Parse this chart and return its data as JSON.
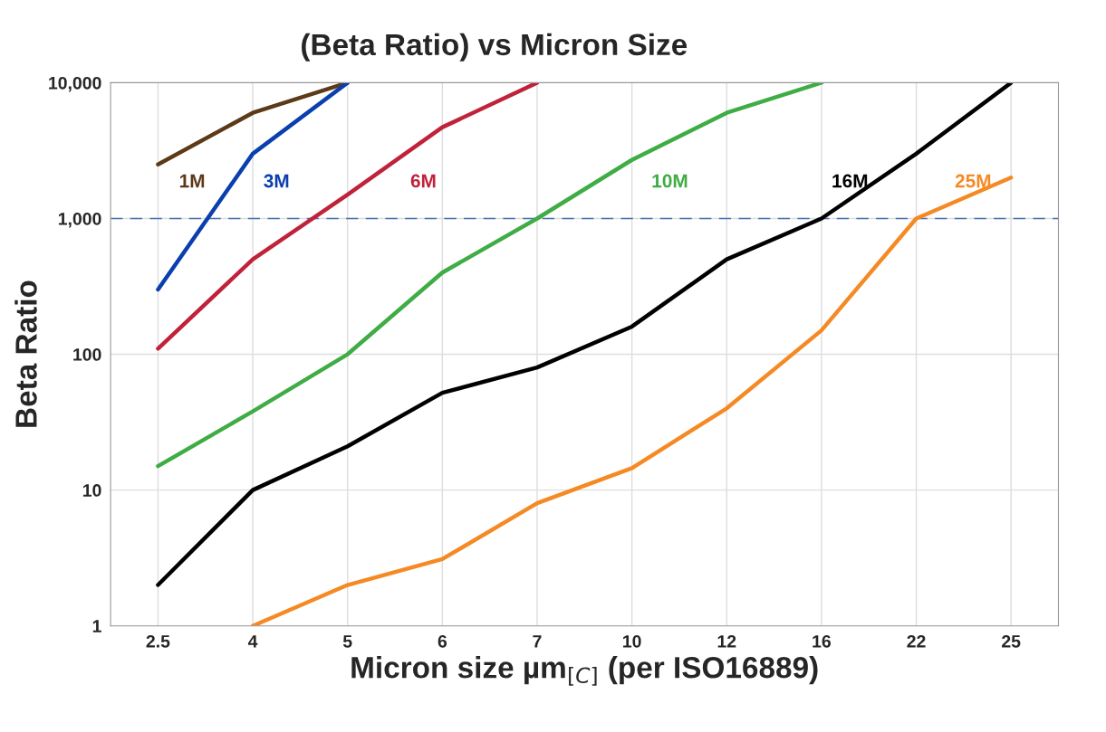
{
  "chart_data": {
    "type": "line",
    "title": "(Beta Ratio) vs Micron Size",
    "xlabel": "Micron size µm$_{[C]}$ (per ISO16889)",
    "ylabel": "Beta Ratio",
    "categories": [
      "2.5",
      "4",
      "5",
      "6",
      "7",
      "10",
      "12",
      "16",
      "22",
      "25"
    ],
    "series": [
      {
        "name": "1M",
        "color": "#5c3a17",
        "values": [
          2500,
          6000,
          10000,
          null,
          null,
          null,
          null,
          null,
          null,
          null
        ]
      },
      {
        "name": "3M",
        "color": "#0a3fae",
        "values": [
          300,
          3000,
          10000,
          null,
          null,
          null,
          null,
          null,
          null,
          null
        ]
      },
      {
        "name": "6M",
        "color": "#c0223a",
        "values": [
          110,
          500,
          1500,
          4700,
          10000,
          null,
          null,
          null,
          null,
          null
        ]
      },
      {
        "name": "10M",
        "color": "#3fac45",
        "values": [
          15,
          38,
          100,
          400,
          1000,
          2700,
          6000,
          10000,
          null,
          null
        ]
      },
      {
        "name": "16M",
        "color": "#000000",
        "values": [
          2,
          10,
          21,
          52,
          80,
          160,
          500,
          1000,
          3000,
          10000
        ]
      },
      {
        "name": "25M",
        "color": "#f58a25",
        "values": [
          null,
          1,
          2,
          3.1,
          8,
          14.5,
          40,
          150,
          1000,
          2000
        ]
      }
    ],
    "log": "y",
    "ylim": [
      1,
      10000
    ],
    "yticks": [
      1,
      10,
      100,
      {
        "value": 1000,
        "label": "1,000"
      },
      {
        "value": 10000,
        "label": "10,000"
      }
    ],
    "ref_lines": [
      {
        "axis": "y",
        "value": 1000,
        "color": "#4a6fb5",
        "line_style": "dashed"
      }
    ],
    "grid": true,
    "legend": false,
    "line_style": "solid",
    "marker": "none"
  }
}
